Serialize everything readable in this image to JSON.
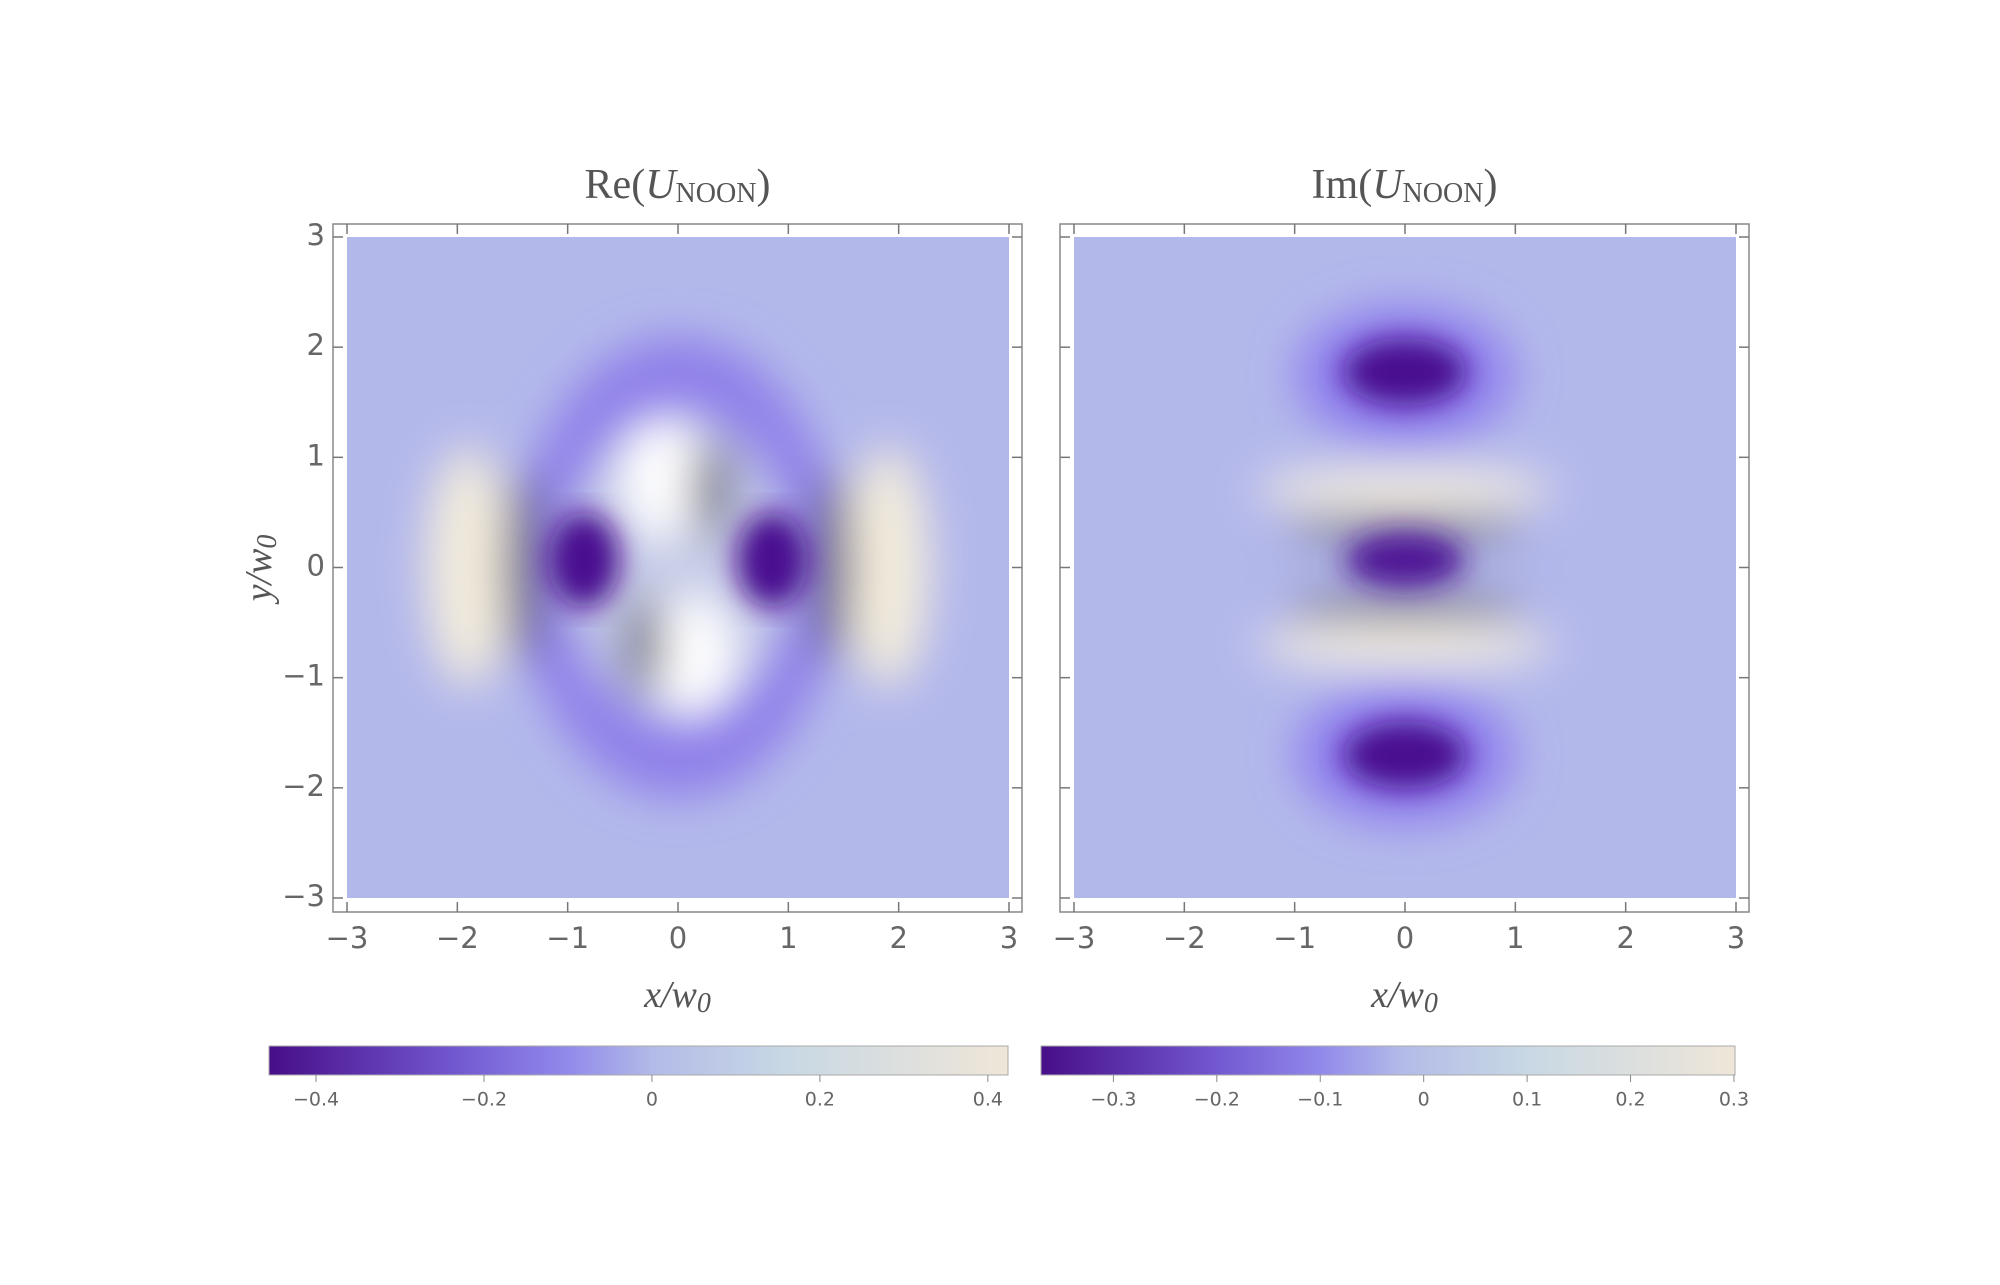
{
  "chart_data": [
    {
      "type": "density",
      "title": [
        "Re(",
        "U",
        "NOON",
        ")"
      ],
      "x_label": [
        "x/w",
        "0"
      ],
      "y_label": [
        "y/w",
        "0"
      ],
      "xlim": [
        -3,
        3
      ],
      "ylim": [
        -3,
        3
      ],
      "xticks": [
        {
          "value": -3,
          "label": "−3"
        },
        {
          "value": -2,
          "label": "−2"
        },
        {
          "value": -1,
          "label": "−1"
        },
        0,
        1,
        2,
        3
      ],
      "yticks": [
        {
          "value": -3,
          "label": "−3"
        },
        {
          "value": -2,
          "label": "−2"
        },
        {
          "value": -1,
          "label": "−1"
        },
        0,
        1,
        2,
        3
      ],
      "colorbar": {
        "lim": [
          -0.456,
          0.424
        ],
        "ticks": [
          {
            "value": -0.4,
            "label": "−0.4"
          },
          {
            "value": -0.2,
            "label": "−0.2"
          },
          0,
          0.2,
          0.4
        ]
      }
    },
    {
      "type": "density",
      "title": [
        "Im(",
        "U",
        "NOON",
        ")"
      ],
      "x_label": [
        "x/w",
        "0"
      ],
      "xlim": [
        -3,
        3
      ],
      "ylim": [
        -3,
        3
      ],
      "xticks": [
        {
          "value": -3,
          "label": "−3"
        },
        {
          "value": -2,
          "label": "−2"
        },
        {
          "value": -1,
          "label": "−1"
        },
        0,
        1,
        2,
        3
      ],
      "yticks": [
        -3,
        -2,
        -1,
        0,
        1,
        2,
        3
      ],
      "colorbar": {
        "lim": [
          -0.37,
          0.301
        ],
        "ticks": [
          {
            "value": -0.3,
            "label": "−0.3"
          },
          {
            "value": -0.2,
            "label": "−0.2"
          },
          {
            "value": -0.1,
            "label": "−0.1"
          },
          0,
          0.1,
          0.2,
          0.3
        ]
      }
    }
  ]
}
